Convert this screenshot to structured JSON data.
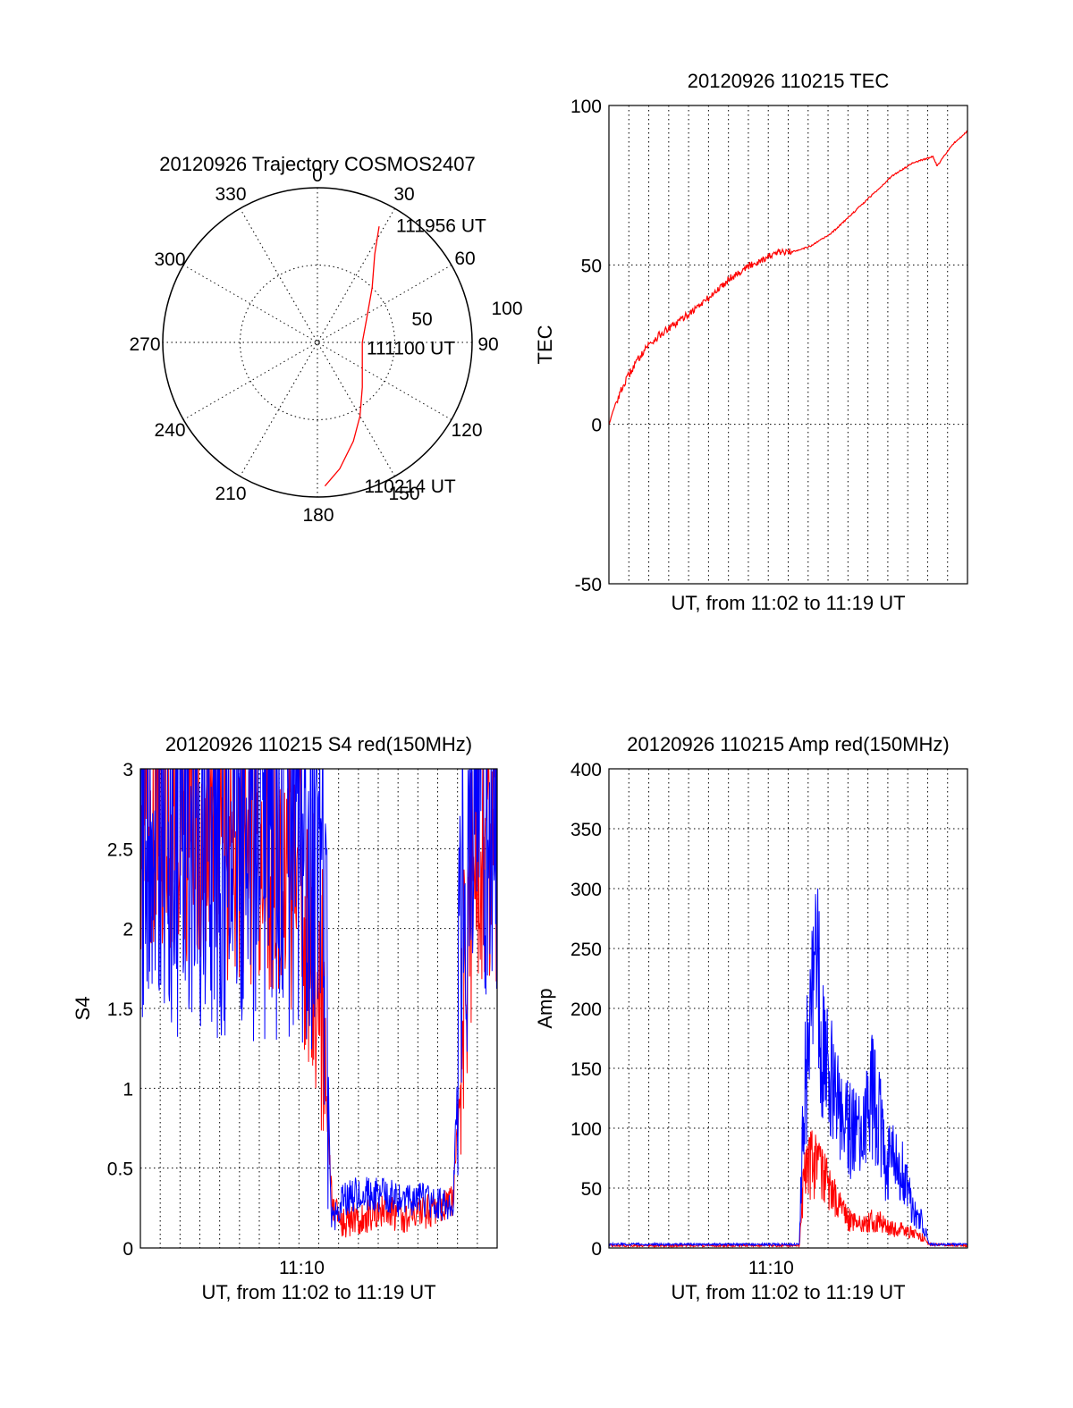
{
  "colors": {
    "red": "#ff0000",
    "blue": "#0000ff",
    "axis": "#000000"
  },
  "chart_data": [
    {
      "type": "polar",
      "title": "20120926 Trajectory COSMOS2407",
      "angle_labels": [
        "0",
        "30",
        "60",
        "90",
        "120",
        "150",
        "180",
        "210",
        "240",
        "270",
        "300",
        "330"
      ],
      "radius_labels": [
        "50",
        "100"
      ],
      "rlim": [
        0,
        100
      ],
      "grid": true,
      "series": [
        {
          "color": "red",
          "points": [
            {
              "az": 177,
              "zen": 93
            },
            {
              "az": 170,
              "zen": 83
            },
            {
              "az": 160,
              "zen": 68
            },
            {
              "az": 150,
              "zen": 55
            },
            {
              "az": 135,
              "zen": 41
            },
            {
              "az": 115,
              "zen": 32
            },
            {
              "az": 90,
              "zen": 29
            },
            {
              "az": 65,
              "zen": 35
            },
            {
              "az": 45,
              "zen": 50
            },
            {
              "az": 33,
              "zen": 68
            },
            {
              "az": 28,
              "zen": 85
            }
          ]
        }
      ],
      "annotations": [
        {
          "text": "111956 UT",
          "az": 34,
          "zen": 91
        },
        {
          "text": "111100 UT",
          "az": 97,
          "zen": 32
        },
        {
          "text": "110214 UT",
          "az": 162,
          "zen": 98
        }
      ]
    },
    {
      "type": "line",
      "title": "20120926 110215 TEC",
      "xlabel": "UT, from 11:02 to 11:19 UT",
      "ylabel": "TEC",
      "ylim": [
        -50,
        100
      ],
      "yticks": [
        "-50",
        "0",
        "50",
        "100"
      ],
      "xlim": [
        0,
        17.7
      ],
      "grid": true,
      "series": [
        {
          "color": "red",
          "x": [
            0,
            0.3,
            0.7,
            1.2,
            1.8,
            2.5,
            3.2,
            4,
            5,
            6,
            7,
            8,
            8.5,
            9,
            10,
            11,
            12,
            13,
            14,
            15,
            16,
            16.2,
            17,
            17.7
          ],
          "y": [
            0,
            6,
            12,
            18,
            24,
            28,
            31,
            35,
            40,
            46,
            50,
            53,
            54,
            54,
            56,
            60,
            66,
            72,
            78,
            82,
            84,
            81,
            88,
            92
          ]
        }
      ]
    },
    {
      "type": "line",
      "title": "20120926 110215 S4 red(150MHz)",
      "xlabel": "UT, from 11:02 to 11:19 UT",
      "ylabel": "S4",
      "xtick_label": "11:10",
      "ylim": [
        0,
        3
      ],
      "yticks": [
        "0",
        "0.5",
        "1",
        "1.5",
        "2",
        "2.5",
        "3"
      ],
      "xlim": [
        0,
        17.7
      ],
      "grid": true,
      "series": [
        {
          "color": "red",
          "x": [
            0,
            1,
            2,
            3,
            4,
            5,
            6,
            7,
            8,
            8.8,
            9.2,
            9.5,
            10,
            11,
            12,
            13,
            14,
            15,
            15.5,
            16,
            16.5,
            17,
            17.7
          ],
          "y": [
            2.4,
            2.5,
            2.4,
            2.4,
            2.3,
            2.3,
            2.2,
            2.2,
            1.9,
            1.5,
            1.0,
            0.3,
            0.17,
            0.2,
            0.22,
            0.2,
            0.22,
            0.25,
            0.3,
            1.2,
            2.0,
            2.2,
            2.3
          ]
        },
        {
          "color": "blue",
          "x": [
            0,
            1,
            2,
            3,
            4,
            5,
            6,
            7,
            8,
            8.8,
            9.2,
            9.5,
            10,
            11,
            12,
            13,
            14,
            15,
            15.5,
            16,
            16.5,
            17,
            17.7
          ],
          "y": [
            2.3,
            2.4,
            2.2,
            2.3,
            2.2,
            2.1,
            2.2,
            2.2,
            2.1,
            2.1,
            1.6,
            0.15,
            0.3,
            0.35,
            0.33,
            0.3,
            0.3,
            0.28,
            0.25,
            1.9,
            2.4,
            2.5,
            2.4
          ]
        }
      ]
    },
    {
      "type": "line",
      "title": "20120926 110215 Amp red(150MHz)",
      "xlabel": "UT, from 11:02 to 11:19 UT",
      "ylabel": "Amp",
      "xtick_label": "11:10",
      "ylim": [
        0,
        400
      ],
      "yticks": [
        "0",
        "50",
        "100",
        "150",
        "200",
        "250",
        "300",
        "350",
        "400"
      ],
      "xlim": [
        0,
        17.7
      ],
      "grid": true,
      "series": [
        {
          "color": "red",
          "x": [
            0,
            9.4,
            9.6,
            10,
            10.5,
            11,
            11.5,
            12,
            12.5,
            13,
            13.5,
            14,
            14.5,
            15,
            15.5,
            15.8,
            17.7
          ],
          "y": [
            2,
            2,
            50,
            70,
            60,
            45,
            30,
            20,
            18,
            22,
            20,
            15,
            15,
            12,
            8,
            3,
            2
          ]
        },
        {
          "color": "blue",
          "x": [
            0,
            9.4,
            9.6,
            10,
            10.3,
            10.6,
            11,
            11.5,
            12,
            12.5,
            13,
            13.3,
            13.7,
            14,
            14.5,
            15,
            15.5,
            15.8,
            17.7
          ],
          "y": [
            3,
            3,
            120,
            180,
            220,
            160,
            130,
            110,
            90,
            85,
            120,
            110,
            60,
            80,
            60,
            30,
            20,
            3,
            3
          ]
        }
      ]
    }
  ]
}
